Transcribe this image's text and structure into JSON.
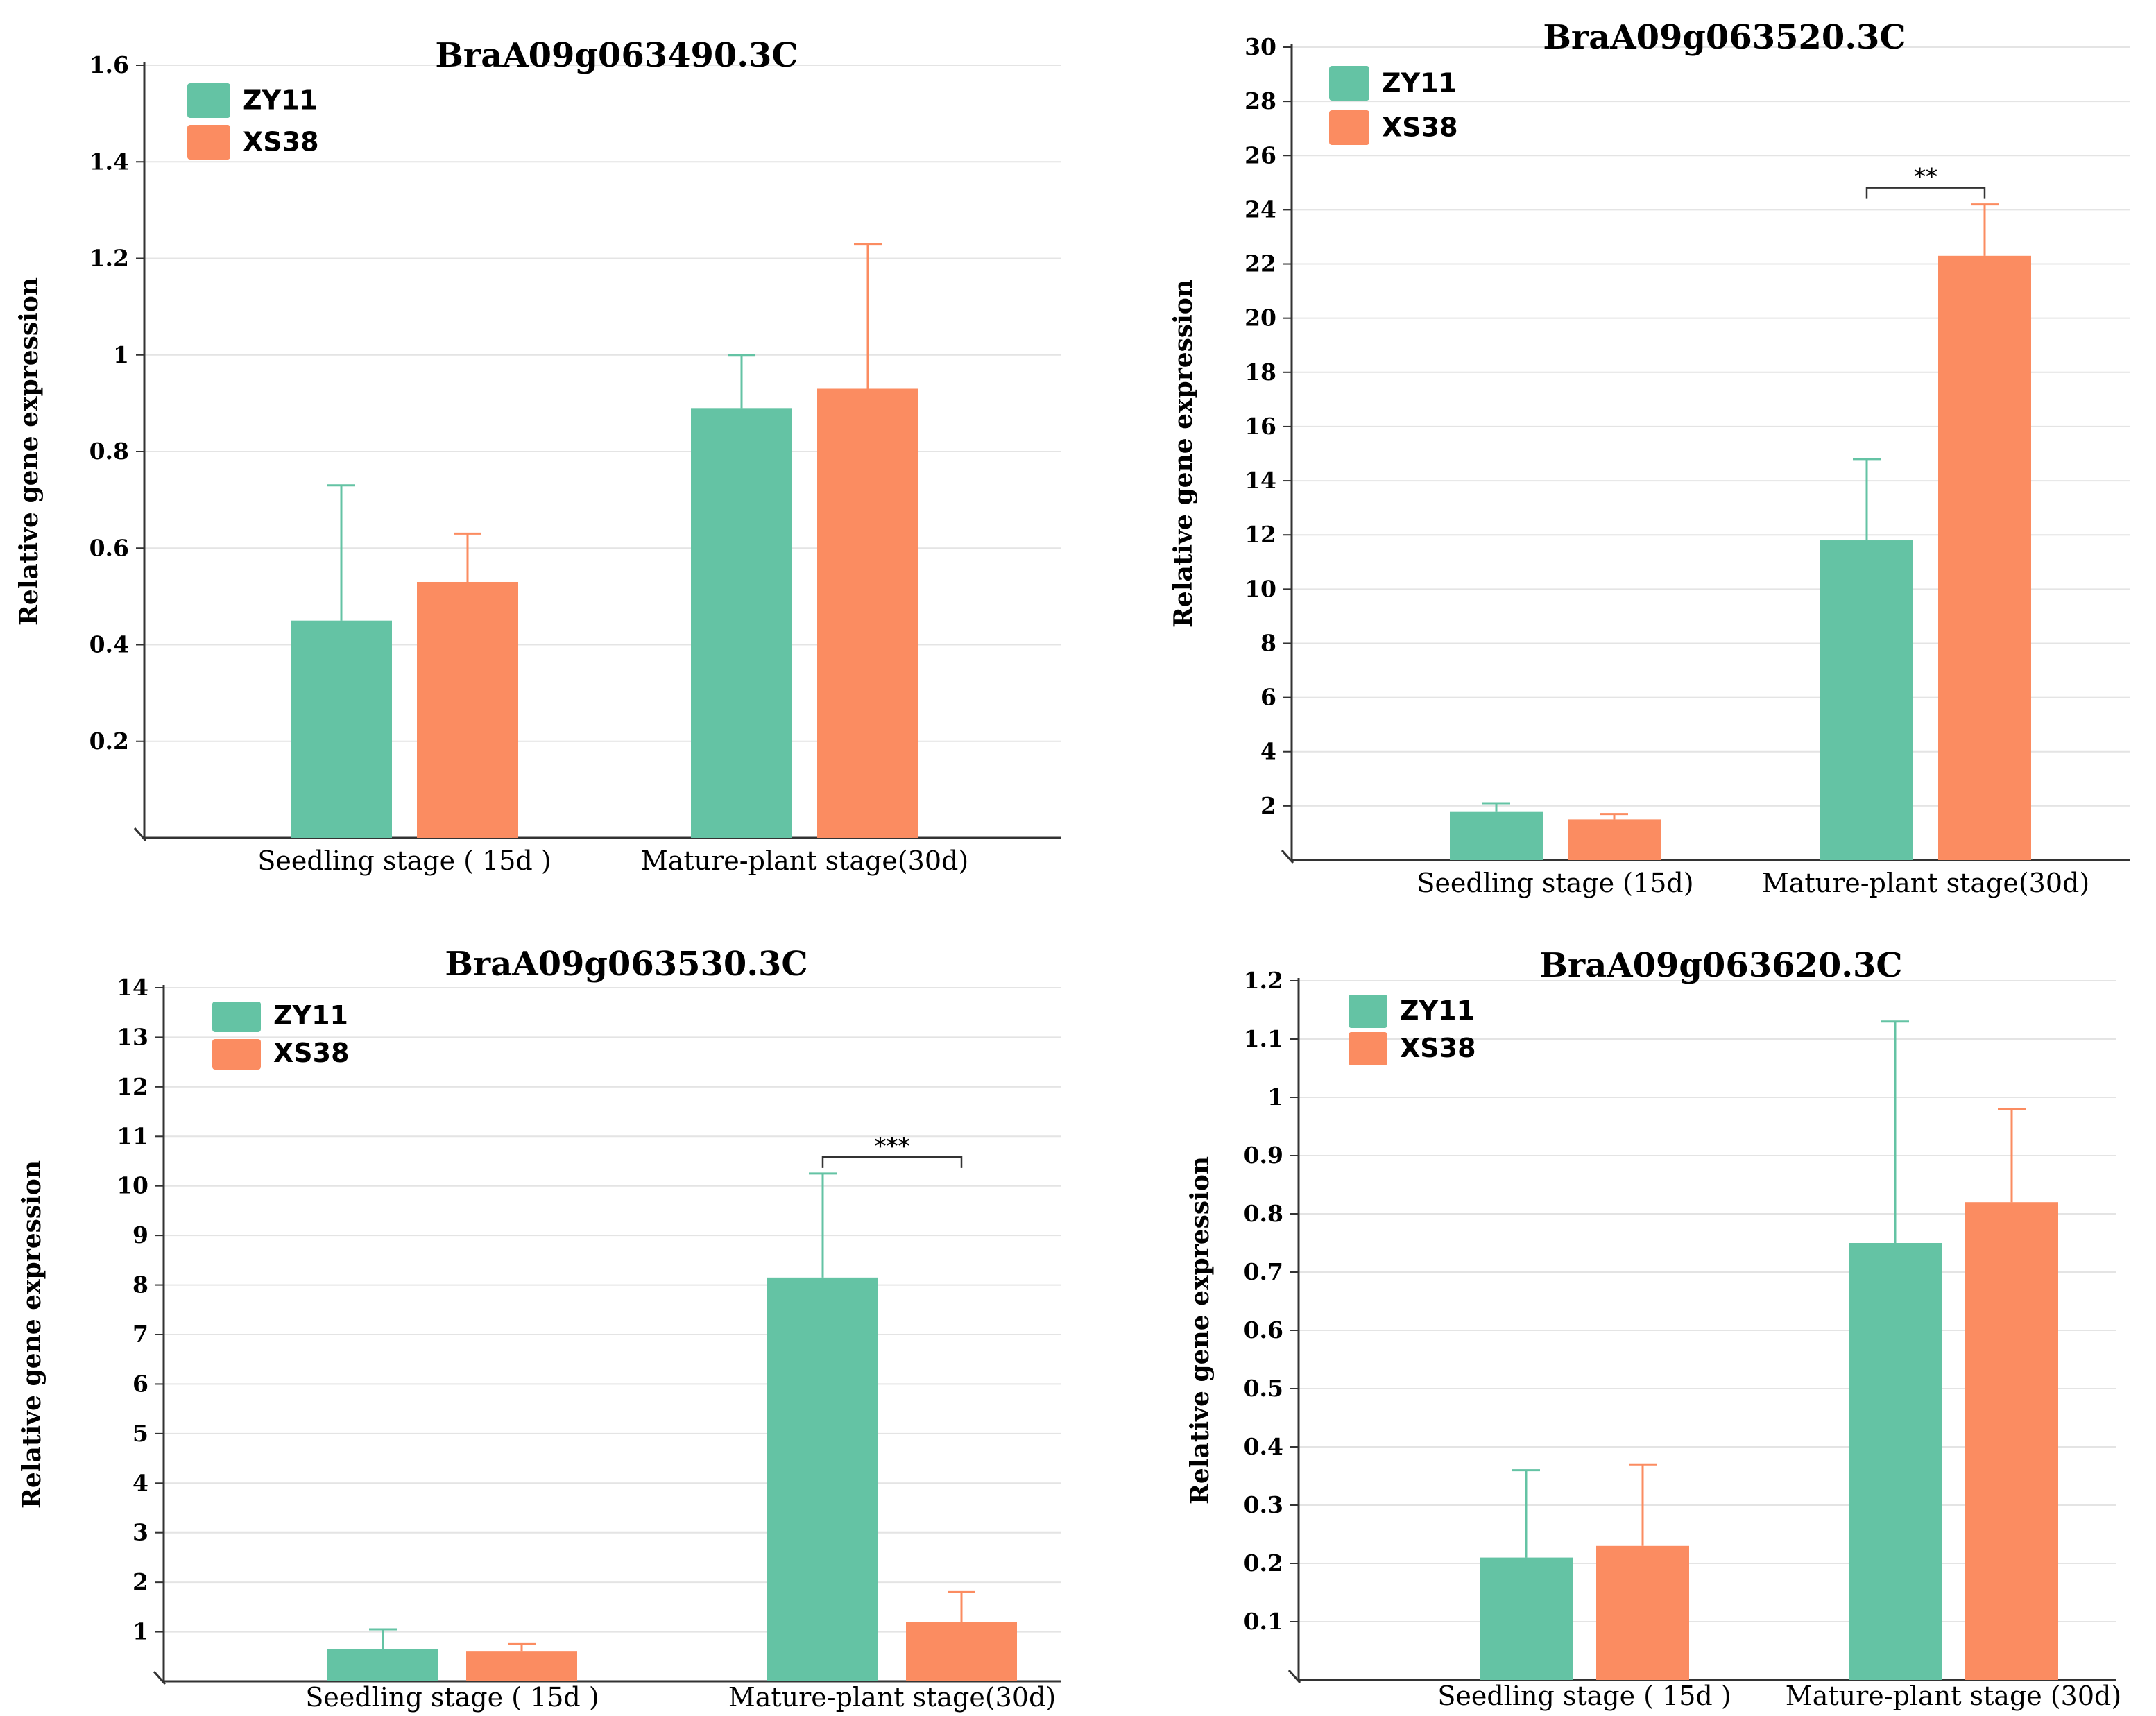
{
  "colors": {
    "ZY11": "#64c3a4",
    "XS38": "#fb8c61",
    "grid": "#e4e4e4",
    "axis": "#333333"
  },
  "chart_data": [
    {
      "type": "bar",
      "title": "BraA09g063490.3C",
      "ylabel": "Relative gene expression",
      "xlabel": "",
      "categories": [
        "Seedling stage ( 15d )",
        "Mature-plant stage(30d)"
      ],
      "ylim": [
        0,
        1.6
      ],
      "yticks": [
        "0.2",
        "0.4",
        "0.6",
        "0.8",
        "1",
        "1.2",
        "1.4",
        "1.6"
      ],
      "grid": true,
      "legend": "top-left",
      "series": [
        {
          "name": "ZY11",
          "values": [
            0.45,
            0.89
          ],
          "errors": [
            0.28,
            0.11
          ]
        },
        {
          "name": "XS38",
          "values": [
            0.53,
            0.93
          ],
          "errors": [
            0.1,
            0.3
          ]
        }
      ],
      "significance": []
    },
    {
      "type": "bar",
      "title": "BraA09g063520.3C",
      "ylabel": "Relative gene expression",
      "xlabel": "",
      "categories": [
        "Seedling stage  (15d)",
        "Mature-plant stage(30d)"
      ],
      "ylim": [
        0,
        30
      ],
      "yticks": [
        "2",
        "4",
        "6",
        "8",
        "10",
        "12",
        "14",
        "16",
        "18",
        "20",
        "22",
        "24",
        "26",
        "28",
        "30"
      ],
      "grid": true,
      "legend": "top-left",
      "series": [
        {
          "name": "ZY11",
          "values": [
            1.8,
            11.8
          ],
          "errors": [
            0.3,
            3.0
          ]
        },
        {
          "name": "XS38",
          "values": [
            1.5,
            22.3
          ],
          "errors": [
            0.2,
            1.9
          ]
        }
      ],
      "significance": [
        {
          "category": 1,
          "label": "**"
        }
      ]
    },
    {
      "type": "bar",
      "title": "BraA09g063530.3C",
      "ylabel": "Relative gene expression",
      "xlabel": "",
      "categories": [
        "Seedling stage ( 15d )",
        "Mature-plant stage(30d)"
      ],
      "ylim": [
        0,
        14
      ],
      "yticks": [
        "1",
        "2",
        "3",
        "4",
        "5",
        "6",
        "7",
        "8",
        "9",
        "10",
        "11",
        "12",
        "13",
        "14"
      ],
      "grid": true,
      "legend": "top-left",
      "series": [
        {
          "name": "ZY11",
          "values": [
            0.65,
            8.15
          ],
          "errors": [
            0.4,
            2.1
          ]
        },
        {
          "name": "XS38",
          "values": [
            0.6,
            1.2
          ],
          "errors": [
            0.15,
            0.6
          ]
        }
      ],
      "significance": [
        {
          "category": 1,
          "label": "***"
        }
      ]
    },
    {
      "type": "bar",
      "title": "BraA09g063620.3C",
      "ylabel": "Relative gene expression",
      "xlabel": "",
      "categories": [
        "Seedling stage ( 15d )",
        "Mature-plant stage  (30d)"
      ],
      "ylim": [
        0,
        1.2
      ],
      "yticks": [
        "0.1",
        "0.2",
        "0.3",
        "0.4",
        "0.5",
        "0.6",
        "0.7",
        "0.8",
        "0.9",
        "1",
        "1.1",
        "1.2"
      ],
      "grid": true,
      "legend": "top-left",
      "series": [
        {
          "name": "ZY11",
          "values": [
            0.21,
            0.75
          ],
          "errors": [
            0.15,
            0.38
          ]
        },
        {
          "name": "XS38",
          "values": [
            0.23,
            0.82
          ],
          "errors": [
            0.14,
            0.16
          ]
        }
      ],
      "significance": []
    }
  ]
}
